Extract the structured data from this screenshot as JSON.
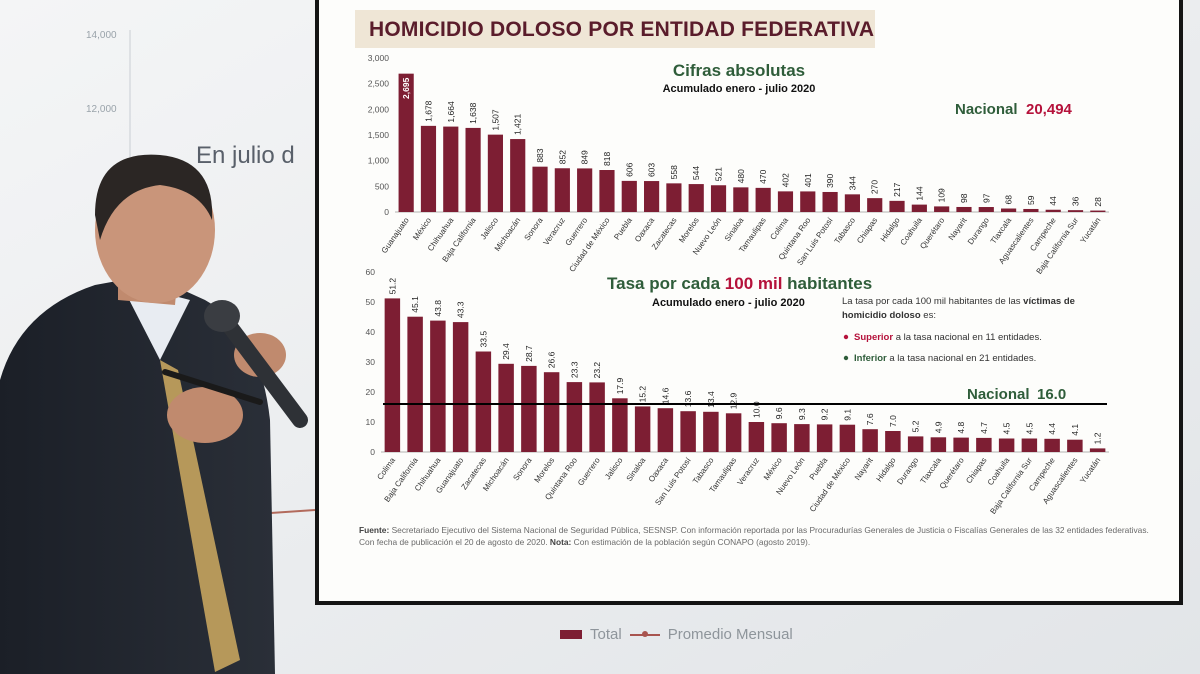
{
  "background": {
    "axis_ticks": [
      "14,000",
      "12,000"
    ],
    "headline": "En julio d",
    "legend": {
      "total": "Total",
      "avg": "Promedio Mensual"
    },
    "colors": {
      "bar": "#7d1e33",
      "line": "#a8544f"
    }
  },
  "slide": {
    "title": "HOMICIDIO DOLOSO POR ENTIDAD FEDERATIVA",
    "footnote": {
      "fuente_label": "Fuente:",
      "fuente_text": "Secretariado Ejecutivo del Sistema Nacional de Seguridad Pública, SESNSP. Con información reportada por las Procuradurías Generales de Justicia o Fiscalías Generales de las 32 entidades federativas.",
      "fecha_text": "Con fecha de publicación el 20 de agosto de 2020.",
      "nota_label": "Nota:",
      "nota_text": "Con estimación de la población según CONAPO (agosto 2019)."
    },
    "colors": {
      "bar": "#7d1e33",
      "title": "#5a1c2b",
      "green": "#2f5d3a",
      "red": "#b5123b"
    }
  },
  "chart_data": [
    {
      "type": "bar",
      "title": "Cifras absolutas",
      "subtitle": "Acumulado enero - julio 2020",
      "national_label": "Nacional",
      "national_value_text": "20,494",
      "ylim": [
        0,
        3000
      ],
      "yticks": [
        "0",
        "500",
        "1,000",
        "1,500",
        "2,000",
        "2,500",
        "3,000"
      ],
      "categories": [
        "Guanajuato",
        "México",
        "Chihuahua",
        "Baja California",
        "Jalisco",
        "Michoacán",
        "Sonora",
        "Veracruz",
        "Guerrero",
        "Ciudad de México",
        "Puebla",
        "Oaxaca",
        "Zacatecas",
        "Morelos",
        "Nuevo León",
        "Sinaloa",
        "Tamaulipas",
        "Colima",
        "Quintana Roo",
        "San Luis Potosí",
        "Tabasco",
        "Chiapas",
        "Hidalgo",
        "Coahuila",
        "Querétaro",
        "Nayarit",
        "Durango",
        "Tlaxcala",
        "Aguascalientes",
        "Campeche",
        "Baja California Sur",
        "Yucatán"
      ],
      "values": [
        2695,
        1678,
        1664,
        1638,
        1507,
        1421,
        883,
        852,
        849,
        818,
        606,
        603,
        558,
        544,
        521,
        480,
        470,
        402,
        401,
        390,
        344,
        270,
        217,
        144,
        109,
        98,
        97,
        68,
        59,
        44,
        36,
        28
      ],
      "value_labels": [
        "2,695",
        "1,678",
        "1,664",
        "1,638",
        "1,507",
        "1,421",
        "883",
        "852",
        "849",
        "818",
        "606",
        "603",
        "558",
        "544",
        "521",
        "480",
        "470",
        "402",
        "401",
        "390",
        "344",
        "270",
        "217",
        "144",
        "109",
        "98",
        "97",
        "68",
        "59",
        "44",
        "36",
        "28"
      ]
    },
    {
      "type": "bar",
      "title_pre": "Tasa por cada ",
      "title_highlight": "100 mil",
      "title_post": " habitantes",
      "subtitle": "Acumulado enero - julio 2020",
      "national_label": "Nacional",
      "national_value": 16.0,
      "national_value_text": "16.0",
      "ylim": [
        0,
        60
      ],
      "yticks": [
        "0",
        "10",
        "20",
        "30",
        "40",
        "50",
        "60"
      ],
      "note_line1": "La tasa por cada 100 mil habitantes de las ",
      "note_line1_bold": "víctimas de",
      "note_line2": "homicidio doloso",
      "note_line2_post": " es:",
      "superior_label": "Superior",
      "superior_text": " a la tasa nacional en 11 entidades.",
      "inferior_label": "Inferior",
      "inferior_text": " a la tasa nacional en 21 entidades.",
      "categories": [
        "Colima",
        "Baja California",
        "Chihuahua",
        "Guanajuato",
        "Zacatecas",
        "Michoacán",
        "Sonora",
        "Morelos",
        "Quintana Roo",
        "Guerrero",
        "Jalisco",
        "Sinaloa",
        "Oaxaca",
        "San Luis Potosí",
        "Tabasco",
        "Tamaulipas",
        "Veracruz",
        "México",
        "Nuevo León",
        "Puebla",
        "Ciudad de México",
        "Nayarit",
        "Hidalgo",
        "Durango",
        "Tlaxcala",
        "Querétaro",
        "Chiapas",
        "Coahuila",
        "Baja California Sur",
        "Campeche",
        "Aguascalientes",
        "Yucatán"
      ],
      "values": [
        51.2,
        45.1,
        43.8,
        43.3,
        33.5,
        29.4,
        28.7,
        26.6,
        23.3,
        23.2,
        17.9,
        15.2,
        14.6,
        13.6,
        13.4,
        12.9,
        10.0,
        9.6,
        9.3,
        9.2,
        9.1,
        7.6,
        7.0,
        5.2,
        4.9,
        4.8,
        4.7,
        4.5,
        4.5,
        4.4,
        4.1,
        1.2
      ],
      "value_labels": [
        "51.2",
        "45.1",
        "43.8",
        "43.3",
        "33.5",
        "29.4",
        "28.7",
        "26.6",
        "23.3",
        "23.2",
        "17.9",
        "15.2",
        "14.6",
        "13.6",
        "13.4",
        "12.9",
        "10.0",
        "9.6",
        "9.3",
        "9.2",
        "9.1",
        "7.6",
        "7.0",
        "5.2",
        "4.9",
        "4.8",
        "4.7",
        "4.5",
        "4.5",
        "4.4",
        "4.1",
        "1.2"
      ]
    }
  ]
}
